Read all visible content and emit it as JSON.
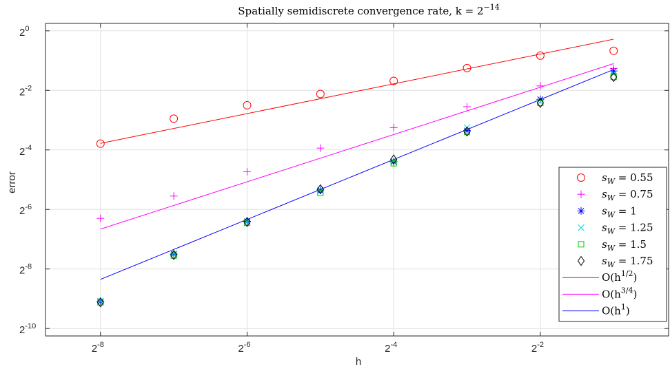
{
  "chart_data": {
    "type": "scatter",
    "title": "Spatially semidiscrete convergence rate, k = 2",
    "title_exponent": "−14",
    "xlabel": "h",
    "ylabel": "error",
    "x_scale": "log2",
    "y_scale": "log2",
    "xlim_log2": [
      -8.75,
      -0.25
    ],
    "ylim_log2": [
      -10.25,
      0.25
    ],
    "grid": true,
    "legend_position": "bottom-right",
    "x_ticks": [
      {
        "base": "2",
        "exp": "-8",
        "value": -8
      },
      {
        "base": "2",
        "exp": "-6",
        "value": -6
      },
      {
        "base": "2",
        "exp": "-4",
        "value": -4
      },
      {
        "base": "2",
        "exp": "-2",
        "value": -2
      }
    ],
    "y_ticks": [
      {
        "base": "2",
        "exp": "0",
        "value": 0
      },
      {
        "base": "2",
        "exp": "-2",
        "value": -2
      },
      {
        "base": "2",
        "exp": "-4",
        "value": -4
      },
      {
        "base": "2",
        "exp": "-6",
        "value": -6
      },
      {
        "base": "2",
        "exp": "-8",
        "value": -8
      },
      {
        "base": "2",
        "exp": "-10",
        "value": -10
      }
    ],
    "x_log2": [
      -8,
      -7,
      -6,
      -5,
      -4,
      -3,
      -2,
      -1
    ],
    "series": [
      {
        "name_label": "s_W = 0.55",
        "key": "sw055",
        "marker": "circle",
        "color": "#ff0000",
        "y_log2": [
          -3.79,
          -2.95,
          -2.5,
          -2.12,
          -1.68,
          -1.25,
          -0.83,
          -0.67
        ]
      },
      {
        "name_label": "s_W = 0.75",
        "key": "sw075",
        "marker": "plus",
        "color": "#ff00ff",
        "y_log2": [
          -6.3,
          -5.55,
          -4.73,
          -3.94,
          -3.25,
          -2.55,
          -1.85,
          -1.26
        ]
      },
      {
        "name_label": "s_W = 1",
        "key": "sw1",
        "marker": "asterisk",
        "color": "#0000ff",
        "y_log2": [
          -9.1,
          -7.5,
          -6.4,
          -5.35,
          -4.4,
          -3.35,
          -2.3,
          -1.35
        ]
      },
      {
        "name_label": "s_W = 1.25",
        "key": "sw125",
        "marker": "cross",
        "color": "#00d8d8",
        "y_log2": [
          -9.08,
          -7.48,
          -6.42,
          -5.38,
          -4.38,
          -3.25,
          -2.38,
          -1.45
        ]
      },
      {
        "name_label": "s_W = 1.5",
        "key": "sw15",
        "marker": "square",
        "color": "#00cc00",
        "y_log2": [
          -9.12,
          -7.55,
          -6.45,
          -5.45,
          -4.45,
          -3.4,
          -2.42,
          -1.55
        ]
      },
      {
        "name_label": "s_W = 1.75",
        "key": "sw175",
        "marker": "diamond",
        "color": "#000000",
        "y_log2": [
          -9.12,
          -7.53,
          -6.42,
          -5.32,
          -4.32,
          -3.38,
          -2.42,
          -1.55
        ]
      }
    ],
    "reference_lines": [
      {
        "name_label": "O(h^1/2)",
        "key": "ref12",
        "color": "#ff0000",
        "x_log2": [
          -8,
          -1
        ],
        "y_log2": [
          -3.78,
          -0.28
        ]
      },
      {
        "name_label": "O(h^3/4)",
        "key": "ref34",
        "color": "#ff00ff",
        "x_log2": [
          -8,
          -1
        ],
        "y_log2": [
          -6.66,
          -1.1
        ]
      },
      {
        "name_label": "O(h^1)",
        "key": "ref1",
        "color": "#0000ff",
        "x_log2": [
          -8,
          -1
        ],
        "y_log2": [
          -8.35,
          -1.3
        ]
      }
    ],
    "legend": [
      {
        "key": "sw055",
        "prefix": "s",
        "sub": "W",
        "suffix": " = 0.55"
      },
      {
        "key": "sw075",
        "prefix": "s",
        "sub": "W",
        "suffix": " = 0.75"
      },
      {
        "key": "sw1",
        "prefix": "s",
        "sub": "W",
        "suffix": " = 1"
      },
      {
        "key": "sw125",
        "prefix": "s",
        "sub": "W",
        "suffix": " = 1.25"
      },
      {
        "key": "sw15",
        "prefix": "s",
        "sub": "W",
        "suffix": " = 1.5"
      },
      {
        "key": "sw175",
        "prefix": "s",
        "sub": "W",
        "suffix": " = 1.75"
      },
      {
        "key": "ref12",
        "prefix": "O(h",
        "sup": "1/2",
        "suffix": ")"
      },
      {
        "key": "ref34",
        "prefix": "O(h",
        "sup": "3/4",
        "suffix": ")"
      },
      {
        "key": "ref1",
        "prefix": "O(h",
        "sup": "1",
        "suffix": ")"
      }
    ]
  }
}
